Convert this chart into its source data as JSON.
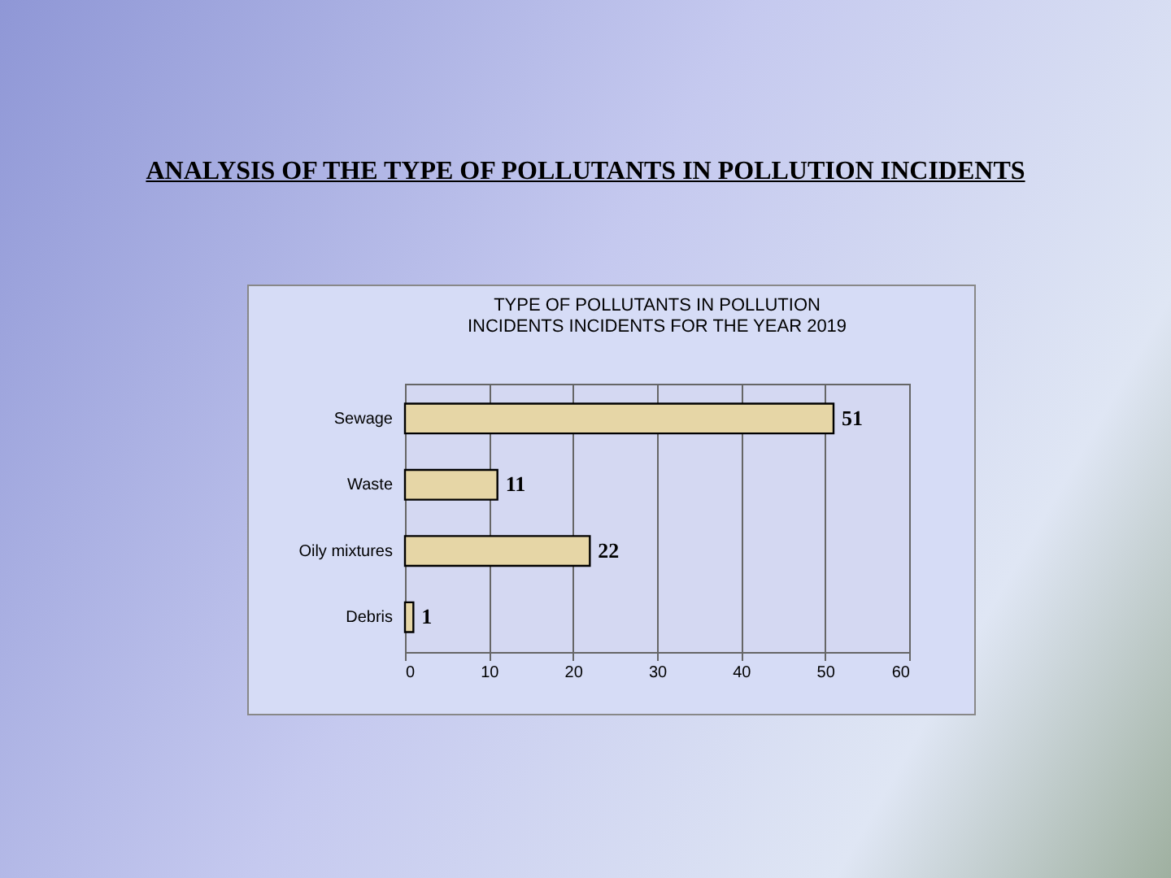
{
  "chart_data": {
    "type": "bar",
    "orientation": "horizontal",
    "title": "ANALYSIS OF THE TYPE OF POLLUTANTS IN POLLUTION INCIDENTS",
    "subtitle": "TYPE  OF POLLUTANTS IN POLLUTION INCIDENTS INCIDENTS FOR THE YEAR 2019",
    "categories": [
      "Sewage",
      "Waste",
      "Oily mixtures",
      "Debris"
    ],
    "values": [
      51,
      11,
      22,
      1
    ],
    "color": "#e6d6a6",
    "xlim": [
      0,
      60
    ],
    "xticks": [
      0,
      10,
      20,
      30,
      40,
      50,
      60
    ],
    "grid": "x",
    "data_labels": true
  }
}
